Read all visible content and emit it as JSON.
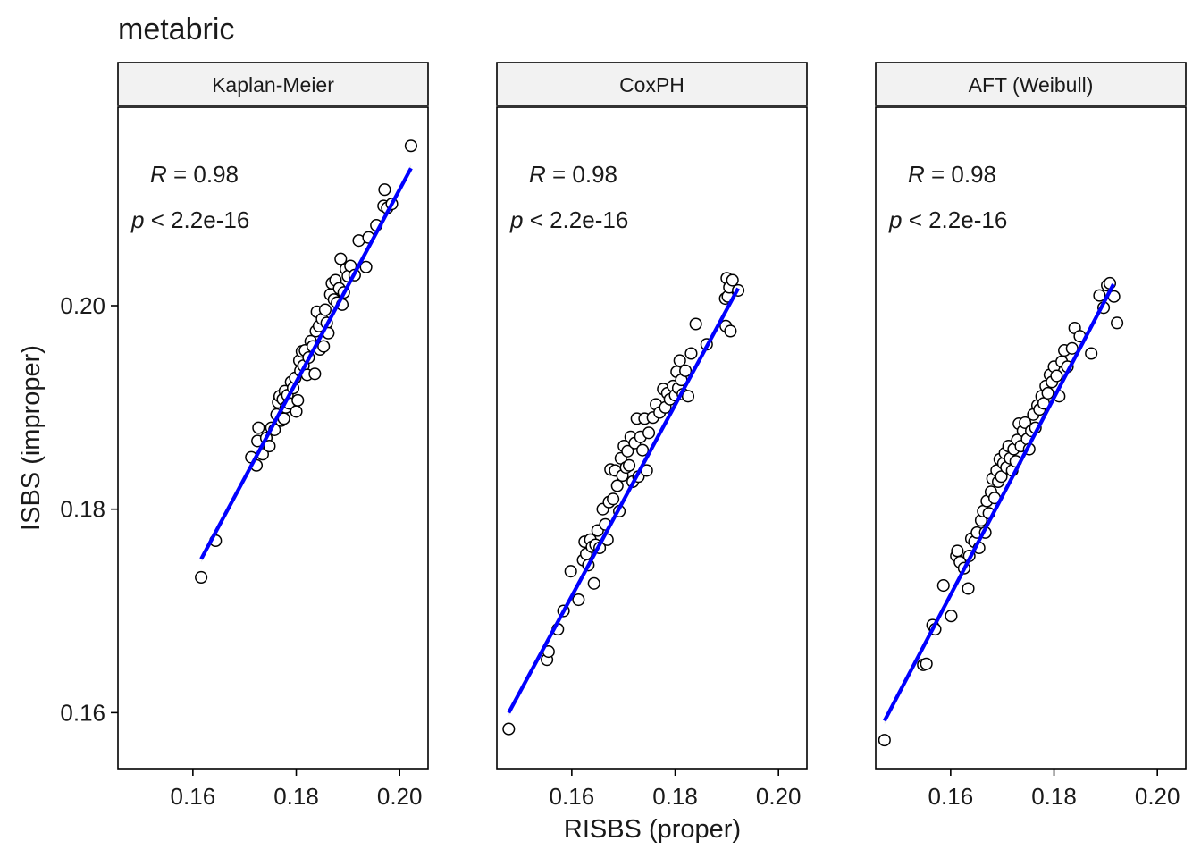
{
  "chart_data": {
    "type": "scatter",
    "title": "metabric",
    "xlabel": "RISBS (proper)",
    "ylabel": "ISBS (improper)",
    "xlim": [
      0.1455,
      0.2055
    ],
    "ylim": [
      0.1545,
      0.2195
    ],
    "x_ticks": [
      0.16,
      0.18,
      0.2
    ],
    "x_tick_labels": [
      "0.16",
      "0.18",
      "0.20"
    ],
    "y_ticks": [
      0.16,
      0.18,
      0.2
    ],
    "y_tick_labels": [
      "0.16",
      "0.18",
      "0.20"
    ],
    "grid": false,
    "colors": {
      "fit_line": "#0000ff",
      "points_fill": "#ffffff",
      "points_stroke": "#000000",
      "strip_fill": "#f2f2f2"
    },
    "panels": [
      {
        "facet": "Kaplan-Meier",
        "stat_r_symbol": "R",
        "stat_r_value": " = 0.98",
        "stat_p_symbol": "p",
        "stat_p_value": " < 2.2e-16",
        "fit": {
          "x": [
            0.1616,
            0.2022
          ],
          "y": [
            0.1751,
            0.2135
          ]
        },
        "points": [
          {
            "x": 0.1616,
            "y": 0.1733
          },
          {
            "x": 0.1644,
            "y": 0.1769
          },
          {
            "x": 0.1713,
            "y": 0.1851
          },
          {
            "x": 0.1723,
            "y": 0.1843
          },
          {
            "x": 0.1725,
            "y": 0.1867
          },
          {
            "x": 0.1727,
            "y": 0.188
          },
          {
            "x": 0.1735,
            "y": 0.1854
          },
          {
            "x": 0.1742,
            "y": 0.187
          },
          {
            "x": 0.1748,
            "y": 0.1862
          },
          {
            "x": 0.1752,
            "y": 0.188
          },
          {
            "x": 0.1758,
            "y": 0.1878
          },
          {
            "x": 0.1762,
            "y": 0.1893
          },
          {
            "x": 0.1765,
            "y": 0.1905
          },
          {
            "x": 0.1768,
            "y": 0.1911
          },
          {
            "x": 0.1771,
            "y": 0.1887
          },
          {
            "x": 0.1774,
            "y": 0.1908
          },
          {
            "x": 0.1776,
            "y": 0.1889
          },
          {
            "x": 0.1778,
            "y": 0.1916
          },
          {
            "x": 0.178,
            "y": 0.19
          },
          {
            "x": 0.1783,
            "y": 0.1912
          },
          {
            "x": 0.1786,
            "y": 0.1904
          },
          {
            "x": 0.179,
            "y": 0.1925
          },
          {
            "x": 0.1794,
            "y": 0.1919
          },
          {
            "x": 0.1798,
            "y": 0.1929
          },
          {
            "x": 0.18,
            "y": 0.1896
          },
          {
            "x": 0.1803,
            "y": 0.1907
          },
          {
            "x": 0.1806,
            "y": 0.1946
          },
          {
            "x": 0.1808,
            "y": 0.1936
          },
          {
            "x": 0.1811,
            "y": 0.1955
          },
          {
            "x": 0.1814,
            "y": 0.1941
          },
          {
            "x": 0.1817,
            "y": 0.1956
          },
          {
            "x": 0.1821,
            "y": 0.1932
          },
          {
            "x": 0.1824,
            "y": 0.1949
          },
          {
            "x": 0.1828,
            "y": 0.1965
          },
          {
            "x": 0.1832,
            "y": 0.196
          },
          {
            "x": 0.1836,
            "y": 0.1933
          },
          {
            "x": 0.1838,
            "y": 0.1975
          },
          {
            "x": 0.184,
            "y": 0.1994
          },
          {
            "x": 0.1844,
            "y": 0.198
          },
          {
            "x": 0.1846,
            "y": 0.1957
          },
          {
            "x": 0.185,
            "y": 0.1987
          },
          {
            "x": 0.1853,
            "y": 0.196
          },
          {
            "x": 0.1856,
            "y": 0.1996
          },
          {
            "x": 0.1859,
            "y": 0.1983
          },
          {
            "x": 0.1862,
            "y": 0.1973
          },
          {
            "x": 0.1866,
            "y": 0.2011
          },
          {
            "x": 0.1869,
            "y": 0.2022
          },
          {
            "x": 0.1873,
            "y": 0.2006
          },
          {
            "x": 0.1876,
            "y": 0.2025
          },
          {
            "x": 0.1879,
            "y": 0.2003
          },
          {
            "x": 0.1883,
            "y": 0.2017
          },
          {
            "x": 0.1886,
            "y": 0.2046
          },
          {
            "x": 0.1889,
            "y": 0.2001
          },
          {
            "x": 0.1892,
            "y": 0.2013
          },
          {
            "x": 0.1896,
            "y": 0.2036
          },
          {
            "x": 0.19,
            "y": 0.2029
          },
          {
            "x": 0.1905,
            "y": 0.2039
          },
          {
            "x": 0.1913,
            "y": 0.203
          },
          {
            "x": 0.1921,
            "y": 0.2064
          },
          {
            "x": 0.1935,
            "y": 0.2038
          },
          {
            "x": 0.194,
            "y": 0.2067
          },
          {
            "x": 0.1955,
            "y": 0.2079
          },
          {
            "x": 0.1969,
            "y": 0.2098
          },
          {
            "x": 0.1971,
            "y": 0.2114
          },
          {
            "x": 0.1976,
            "y": 0.2096
          },
          {
            "x": 0.1985,
            "y": 0.21
          },
          {
            "x": 0.2022,
            "y": 0.2157
          }
        ]
      },
      {
        "facet": "CoxPH",
        "stat_r_symbol": "R",
        "stat_r_value": " = 0.98",
        "stat_p_symbol": "p",
        "stat_p_value": " < 2.2e-16",
        "fit": {
          "x": [
            0.1478,
            0.1922
          ],
          "y": [
            0.16,
            0.2017
          ]
        },
        "points": [
          {
            "x": 0.1478,
            "y": 0.1584
          },
          {
            "x": 0.1552,
            "y": 0.1652
          },
          {
            "x": 0.1555,
            "y": 0.166
          },
          {
            "x": 0.1573,
            "y": 0.1682
          },
          {
            "x": 0.1584,
            "y": 0.17
          },
          {
            "x": 0.1598,
            "y": 0.1739
          },
          {
            "x": 0.1613,
            "y": 0.1711
          },
          {
            "x": 0.1622,
            "y": 0.175
          },
          {
            "x": 0.1625,
            "y": 0.1768
          },
          {
            "x": 0.1628,
            "y": 0.1756
          },
          {
            "x": 0.1632,
            "y": 0.1745
          },
          {
            "x": 0.1636,
            "y": 0.177
          },
          {
            "x": 0.1639,
            "y": 0.1763
          },
          {
            "x": 0.1643,
            "y": 0.1727
          },
          {
            "x": 0.1646,
            "y": 0.1765
          },
          {
            "x": 0.165,
            "y": 0.1779
          },
          {
            "x": 0.1654,
            "y": 0.1762
          },
          {
            "x": 0.166,
            "y": 0.18
          },
          {
            "x": 0.1665,
            "y": 0.1785
          },
          {
            "x": 0.1669,
            "y": 0.177
          },
          {
            "x": 0.1672,
            "y": 0.1807
          },
          {
            "x": 0.1675,
            "y": 0.1839
          },
          {
            "x": 0.168,
            "y": 0.181
          },
          {
            "x": 0.1684,
            "y": 0.1838
          },
          {
            "x": 0.1688,
            "y": 0.1823
          },
          {
            "x": 0.1692,
            "y": 0.1798
          },
          {
            "x": 0.1695,
            "y": 0.185
          },
          {
            "x": 0.1698,
            "y": 0.1833
          },
          {
            "x": 0.1701,
            "y": 0.1862
          },
          {
            "x": 0.1705,
            "y": 0.1841
          },
          {
            "x": 0.1708,
            "y": 0.1857
          },
          {
            "x": 0.1711,
            "y": 0.1843
          },
          {
            "x": 0.1714,
            "y": 0.1871
          },
          {
            "x": 0.1718,
            "y": 0.1827
          },
          {
            "x": 0.1722,
            "y": 0.1865
          },
          {
            "x": 0.1726,
            "y": 0.1889
          },
          {
            "x": 0.1729,
            "y": 0.1832
          },
          {
            "x": 0.1733,
            "y": 0.1871
          },
          {
            "x": 0.1737,
            "y": 0.1858
          },
          {
            "x": 0.1741,
            "y": 0.1889
          },
          {
            "x": 0.1745,
            "y": 0.1838
          },
          {
            "x": 0.1749,
            "y": 0.1875
          },
          {
            "x": 0.1757,
            "y": 0.189
          },
          {
            "x": 0.1763,
            "y": 0.1903
          },
          {
            "x": 0.177,
            "y": 0.1895
          },
          {
            "x": 0.1777,
            "y": 0.1918
          },
          {
            "x": 0.1781,
            "y": 0.19
          },
          {
            "x": 0.1785,
            "y": 0.1914
          },
          {
            "x": 0.179,
            "y": 0.1908
          },
          {
            "x": 0.1796,
            "y": 0.1921
          },
          {
            "x": 0.18,
            "y": 0.1912
          },
          {
            "x": 0.1803,
            "y": 0.1935
          },
          {
            "x": 0.1806,
            "y": 0.1919
          },
          {
            "x": 0.1809,
            "y": 0.1946
          },
          {
            "x": 0.1812,
            "y": 0.1927
          },
          {
            "x": 0.1815,
            "y": 0.1913
          },
          {
            "x": 0.182,
            "y": 0.1936
          },
          {
            "x": 0.1825,
            "y": 0.1911
          },
          {
            "x": 0.1831,
            "y": 0.1953
          },
          {
            "x": 0.184,
            "y": 0.1982
          },
          {
            "x": 0.1861,
            "y": 0.1962
          },
          {
            "x": 0.1897,
            "y": 0.2007
          },
          {
            "x": 0.1898,
            "y": 0.198
          },
          {
            "x": 0.19,
            "y": 0.2027
          },
          {
            "x": 0.1902,
            "y": 0.2009
          },
          {
            "x": 0.1905,
            "y": 0.2018
          },
          {
            "x": 0.1907,
            "y": 0.1975
          },
          {
            "x": 0.1911,
            "y": 0.2025
          },
          {
            "x": 0.1922,
            "y": 0.2015
          }
        ]
      },
      {
        "facet": "AFT (Weibull)",
        "stat_r_symbol": "R",
        "stat_r_value": " = 0.98",
        "stat_p_symbol": "p",
        "stat_p_value": " < 2.2e-16",
        "fit": {
          "x": [
            0.1472,
            0.1915
          ],
          "y": [
            0.1592,
            0.2021
          ]
        },
        "points": [
          {
            "x": 0.1472,
            "y": 0.1573
          },
          {
            "x": 0.1547,
            "y": 0.1647
          },
          {
            "x": 0.1553,
            "y": 0.1648
          },
          {
            "x": 0.1565,
            "y": 0.1686
          },
          {
            "x": 0.157,
            "y": 0.1682
          },
          {
            "x": 0.1586,
            "y": 0.1725
          },
          {
            "x": 0.1601,
            "y": 0.1695
          },
          {
            "x": 0.1611,
            "y": 0.1754
          },
          {
            "x": 0.1613,
            "y": 0.1759
          },
          {
            "x": 0.1618,
            "y": 0.1748
          },
          {
            "x": 0.1626,
            "y": 0.1742
          },
          {
            "x": 0.1634,
            "y": 0.1722
          },
          {
            "x": 0.1636,
            "y": 0.1754
          },
          {
            "x": 0.164,
            "y": 0.1771
          },
          {
            "x": 0.1646,
            "y": 0.1768
          },
          {
            "x": 0.1651,
            "y": 0.1777
          },
          {
            "x": 0.1655,
            "y": 0.1762
          },
          {
            "x": 0.1659,
            "y": 0.1789
          },
          {
            "x": 0.1663,
            "y": 0.1798
          },
          {
            "x": 0.1667,
            "y": 0.1777
          },
          {
            "x": 0.167,
            "y": 0.1808
          },
          {
            "x": 0.1674,
            "y": 0.1796
          },
          {
            "x": 0.1678,
            "y": 0.1817
          },
          {
            "x": 0.1681,
            "y": 0.183
          },
          {
            "x": 0.1685,
            "y": 0.1811
          },
          {
            "x": 0.1689,
            "y": 0.1838
          },
          {
            "x": 0.1692,
            "y": 0.1827
          },
          {
            "x": 0.1695,
            "y": 0.1849
          },
          {
            "x": 0.1698,
            "y": 0.1832
          },
          {
            "x": 0.1702,
            "y": 0.1845
          },
          {
            "x": 0.1705,
            "y": 0.1855
          },
          {
            "x": 0.1708,
            "y": 0.1841
          },
          {
            "x": 0.1712,
            "y": 0.1862
          },
          {
            "x": 0.1715,
            "y": 0.185
          },
          {
            "x": 0.1719,
            "y": 0.1838
          },
          {
            "x": 0.1722,
            "y": 0.1859
          },
          {
            "x": 0.1726,
            "y": 0.1847
          },
          {
            "x": 0.1729,
            "y": 0.1868
          },
          {
            "x": 0.1732,
            "y": 0.1884
          },
          {
            "x": 0.1736,
            "y": 0.1862
          },
          {
            "x": 0.174,
            "y": 0.1877
          },
          {
            "x": 0.1744,
            "y": 0.1885
          },
          {
            "x": 0.1748,
            "y": 0.1869
          },
          {
            "x": 0.1752,
            "y": 0.1859
          },
          {
            "x": 0.1756,
            "y": 0.1877
          },
          {
            "x": 0.176,
            "y": 0.1893
          },
          {
            "x": 0.1764,
            "y": 0.188
          },
          {
            "x": 0.1768,
            "y": 0.1902
          },
          {
            "x": 0.1772,
            "y": 0.1898
          },
          {
            "x": 0.1776,
            "y": 0.1911
          },
          {
            "x": 0.178,
            "y": 0.1904
          },
          {
            "x": 0.1784,
            "y": 0.1921
          },
          {
            "x": 0.1788,
            "y": 0.1914
          },
          {
            "x": 0.1792,
            "y": 0.1932
          },
          {
            "x": 0.1796,
            "y": 0.1925
          },
          {
            "x": 0.18,
            "y": 0.194
          },
          {
            "x": 0.1805,
            "y": 0.1931
          },
          {
            "x": 0.181,
            "y": 0.1911
          },
          {
            "x": 0.1815,
            "y": 0.1945
          },
          {
            "x": 0.182,
            "y": 0.1956
          },
          {
            "x": 0.1826,
            "y": 0.194
          },
          {
            "x": 0.1835,
            "y": 0.1958
          },
          {
            "x": 0.184,
            "y": 0.1978
          },
          {
            "x": 0.185,
            "y": 0.197
          },
          {
            "x": 0.1872,
            "y": 0.1953
          },
          {
            "x": 0.1888,
            "y": 0.201
          },
          {
            "x": 0.1896,
            "y": 0.1998
          },
          {
            "x": 0.1903,
            "y": 0.202
          },
          {
            "x": 0.1908,
            "y": 0.2022
          },
          {
            "x": 0.1916,
            "y": 0.2009
          },
          {
            "x": 0.1922,
            "y": 0.1983
          }
        ]
      }
    ]
  }
}
